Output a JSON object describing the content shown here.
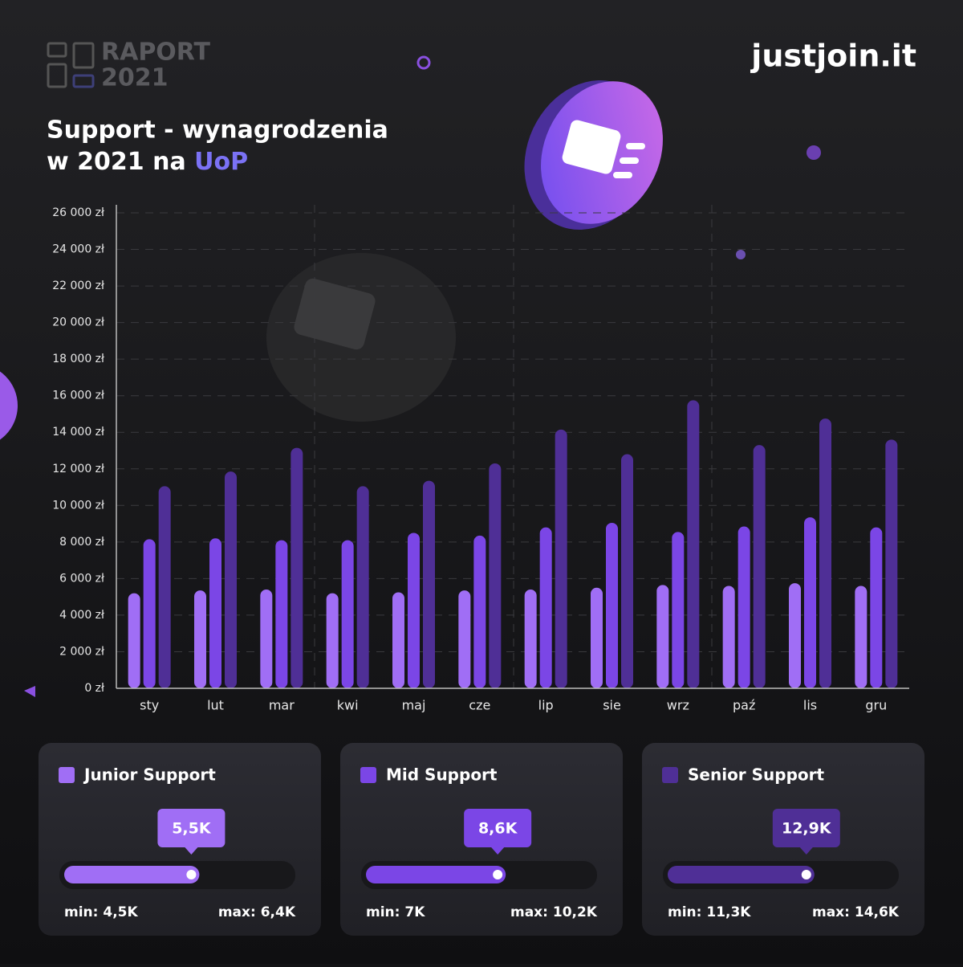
{
  "header": {
    "report": "RAPORT",
    "year": "2021",
    "brand": "justjoin.it"
  },
  "chart_data": {
    "type": "bar",
    "title": [
      "Support - wynagrodzenia",
      "w 2021 na",
      "UoP"
    ],
    "categories": [
      "sty",
      "lut",
      "mar",
      "kwi",
      "maj",
      "cze",
      "lip",
      "sie",
      "wrz",
      "paź",
      "lis",
      "gru"
    ],
    "series": [
      {
        "name": "Junior Support",
        "color": "#a06ef5",
        "values": [
          5200,
          5350,
          5400,
          5200,
          5250,
          5350,
          5400,
          5500,
          5650,
          5600,
          5750,
          5600
        ]
      },
      {
        "name": "Mid Support",
        "color": "#7b46e6",
        "values": [
          8150,
          8200,
          8100,
          8100,
          8500,
          8350,
          8800,
          9050,
          8550,
          8850,
          9350,
          8800
        ]
      },
      {
        "name": "Senior Support",
        "color": "#4f2f96",
        "values": [
          11050,
          11850,
          13150,
          11050,
          11350,
          12300,
          14150,
          12800,
          15750,
          13300,
          14750,
          13600
        ]
      }
    ],
    "ylim": [
      0,
      26000
    ],
    "yticks": [
      {
        "value": 0,
        "label": "0 zł"
      },
      {
        "value": 2000,
        "label": "2 000 zł"
      },
      {
        "value": 4000,
        "label": "4 000 zł"
      },
      {
        "value": 6000,
        "label": "6 000 zł"
      },
      {
        "value": 8000,
        "label": "8 000 zł"
      },
      {
        "value": 10000,
        "label": "10 000 zł"
      },
      {
        "value": 12000,
        "label": "12 000 zł"
      },
      {
        "value": 14000,
        "label": "14 000 zł"
      },
      {
        "value": 16000,
        "label": "16 000 zł"
      },
      {
        "value": 18000,
        "label": "18 000 zł"
      },
      {
        "value": 20000,
        "label": "20 000 zł"
      },
      {
        "value": 22000,
        "label": "22 000 zł"
      },
      {
        "value": 24000,
        "label": "24 000 zł"
      },
      {
        "value": 26000,
        "label": "26 000 zł"
      }
    ],
    "grid": true
  },
  "cards": [
    {
      "value": "5,5K",
      "min": "min: 4,5K",
      "max": "max: 6,4K"
    },
    {
      "value": "8,6K",
      "min": "min: 7K",
      "max": "max: 10,2K"
    },
    {
      "value": "12,9K",
      "min": "min: 11,3K",
      "max": "max: 14,6K"
    }
  ]
}
